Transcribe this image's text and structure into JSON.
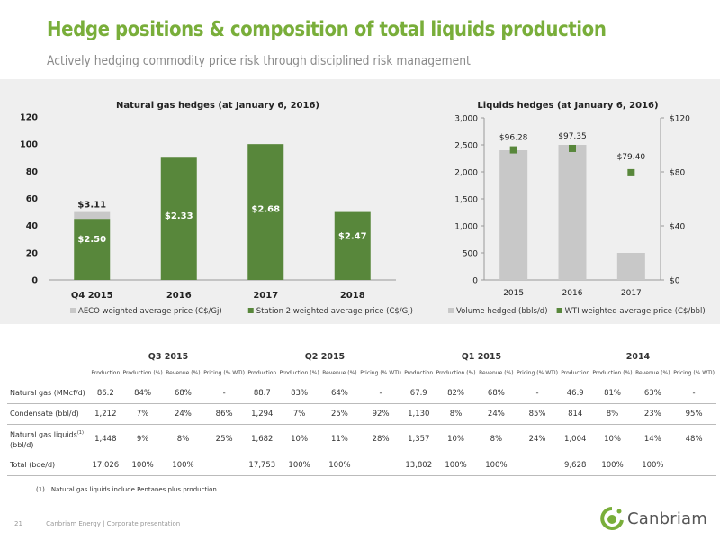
{
  "header": {
    "title": "Hedge positions & composition of total liquids production",
    "subtitle": "Actively hedging commodity price risk through disciplined risk management"
  },
  "colors": {
    "accent": "#79ae3a",
    "bar_green": "#58873b",
    "bar_gray": "#c8c8c8"
  },
  "chart_data": [
    {
      "type": "bar",
      "title": "Natural gas hedges (at January 6, 2016)",
      "categories": [
        "Q4 2015",
        "2016",
        "2017",
        "2018"
      ],
      "ylim": [
        0,
        120
      ],
      "yticks": [
        "0",
        "20",
        "40",
        "60",
        "80",
        "100",
        "120"
      ],
      "stacked": true,
      "series": [
        {
          "name": "Station 2 weighted average price (C$/Gj)",
          "color": "#58873b",
          "values": [
            45,
            90,
            100,
            50
          ],
          "labels": [
            "$2.50",
            "$2.33",
            "$2.68",
            "$2.47"
          ]
        },
        {
          "name": "AECO weighted average price (C$/Gj)",
          "color": "#c8c8c8",
          "values": [
            5,
            0,
            0,
            0
          ],
          "labels": [
            "$3.11",
            "",
            "",
            ""
          ]
        }
      ],
      "legend": "bottom",
      "grid": false
    },
    {
      "type": "bar",
      "title": "Liquids hedges (at January 6, 2016)",
      "categories": [
        "2015",
        "2016",
        "2017"
      ],
      "ylim": [
        0,
        3000
      ],
      "yticks": [
        "0",
        "500",
        "1,000",
        "1,500",
        "2,000",
        "2,500",
        "3,000"
      ],
      "y2lim": [
        0,
        120
      ],
      "y2ticks": [
        "$0",
        "$40",
        "$80",
        "$120"
      ],
      "series": [
        {
          "name": "Volume hedged (bbls/d)",
          "type": "bar",
          "color": "#c8c8c8",
          "values": [
            2400,
            2500,
            500
          ]
        },
        {
          "name": "WTI weighted average price (C$/bbl)",
          "type": "scatter",
          "axis": "right",
          "color": "#58873b",
          "values": [
            96.28,
            97.35,
            79.4
          ],
          "labels": [
            "$96.28",
            "$97.35",
            "$79.40"
          ]
        }
      ],
      "legend": "bottom",
      "grid": false
    }
  ],
  "table": {
    "groups": [
      "Q3 2015",
      "Q2 2015",
      "Q1 2015",
      "2014"
    ],
    "subheaders": [
      "Production",
      "Production (%)",
      "Revenue (%)",
      "Pricing (% WTI)"
    ],
    "rows": [
      {
        "label": "Natural gas (MMcf/d)",
        "cells": [
          "86.2",
          "84%",
          "68%",
          "-",
          "88.7",
          "83%",
          "64%",
          "-",
          "67.9",
          "82%",
          "68%",
          "-",
          "46.9",
          "81%",
          "63%",
          "-"
        ]
      },
      {
        "label": "Condensate (bbl/d)",
        "cells": [
          "1,212",
          "7%",
          "24%",
          "86%",
          "1,294",
          "7%",
          "25%",
          "92%",
          "1,130",
          "8%",
          "24%",
          "85%",
          "814",
          "8%",
          "23%",
          "95%"
        ]
      },
      {
        "label": "Natural gas liquids",
        "label_sup": "(1)",
        "label_2": "(bbl/d)",
        "cells": [
          "1,448",
          "9%",
          "8%",
          "25%",
          "1,682",
          "10%",
          "11%",
          "28%",
          "1,357",
          "10%",
          "8%",
          "24%",
          "1,004",
          "10%",
          "14%",
          "48%"
        ]
      },
      {
        "label": "Total (boe/d)",
        "cells": [
          "17,026",
          "100%",
          "100%",
          "",
          "17,753",
          "100%",
          "100%",
          "",
          "13,802",
          "100%",
          "100%",
          "",
          "9,628",
          "100%",
          "100%",
          ""
        ]
      }
    ]
  },
  "footnote": "(1)  Natural gas liquids include Pentanes plus production.",
  "footer": {
    "page": "21",
    "text": "Canbriam Energy | Corporate presentation"
  },
  "logo": {
    "text": "Canbriam"
  }
}
